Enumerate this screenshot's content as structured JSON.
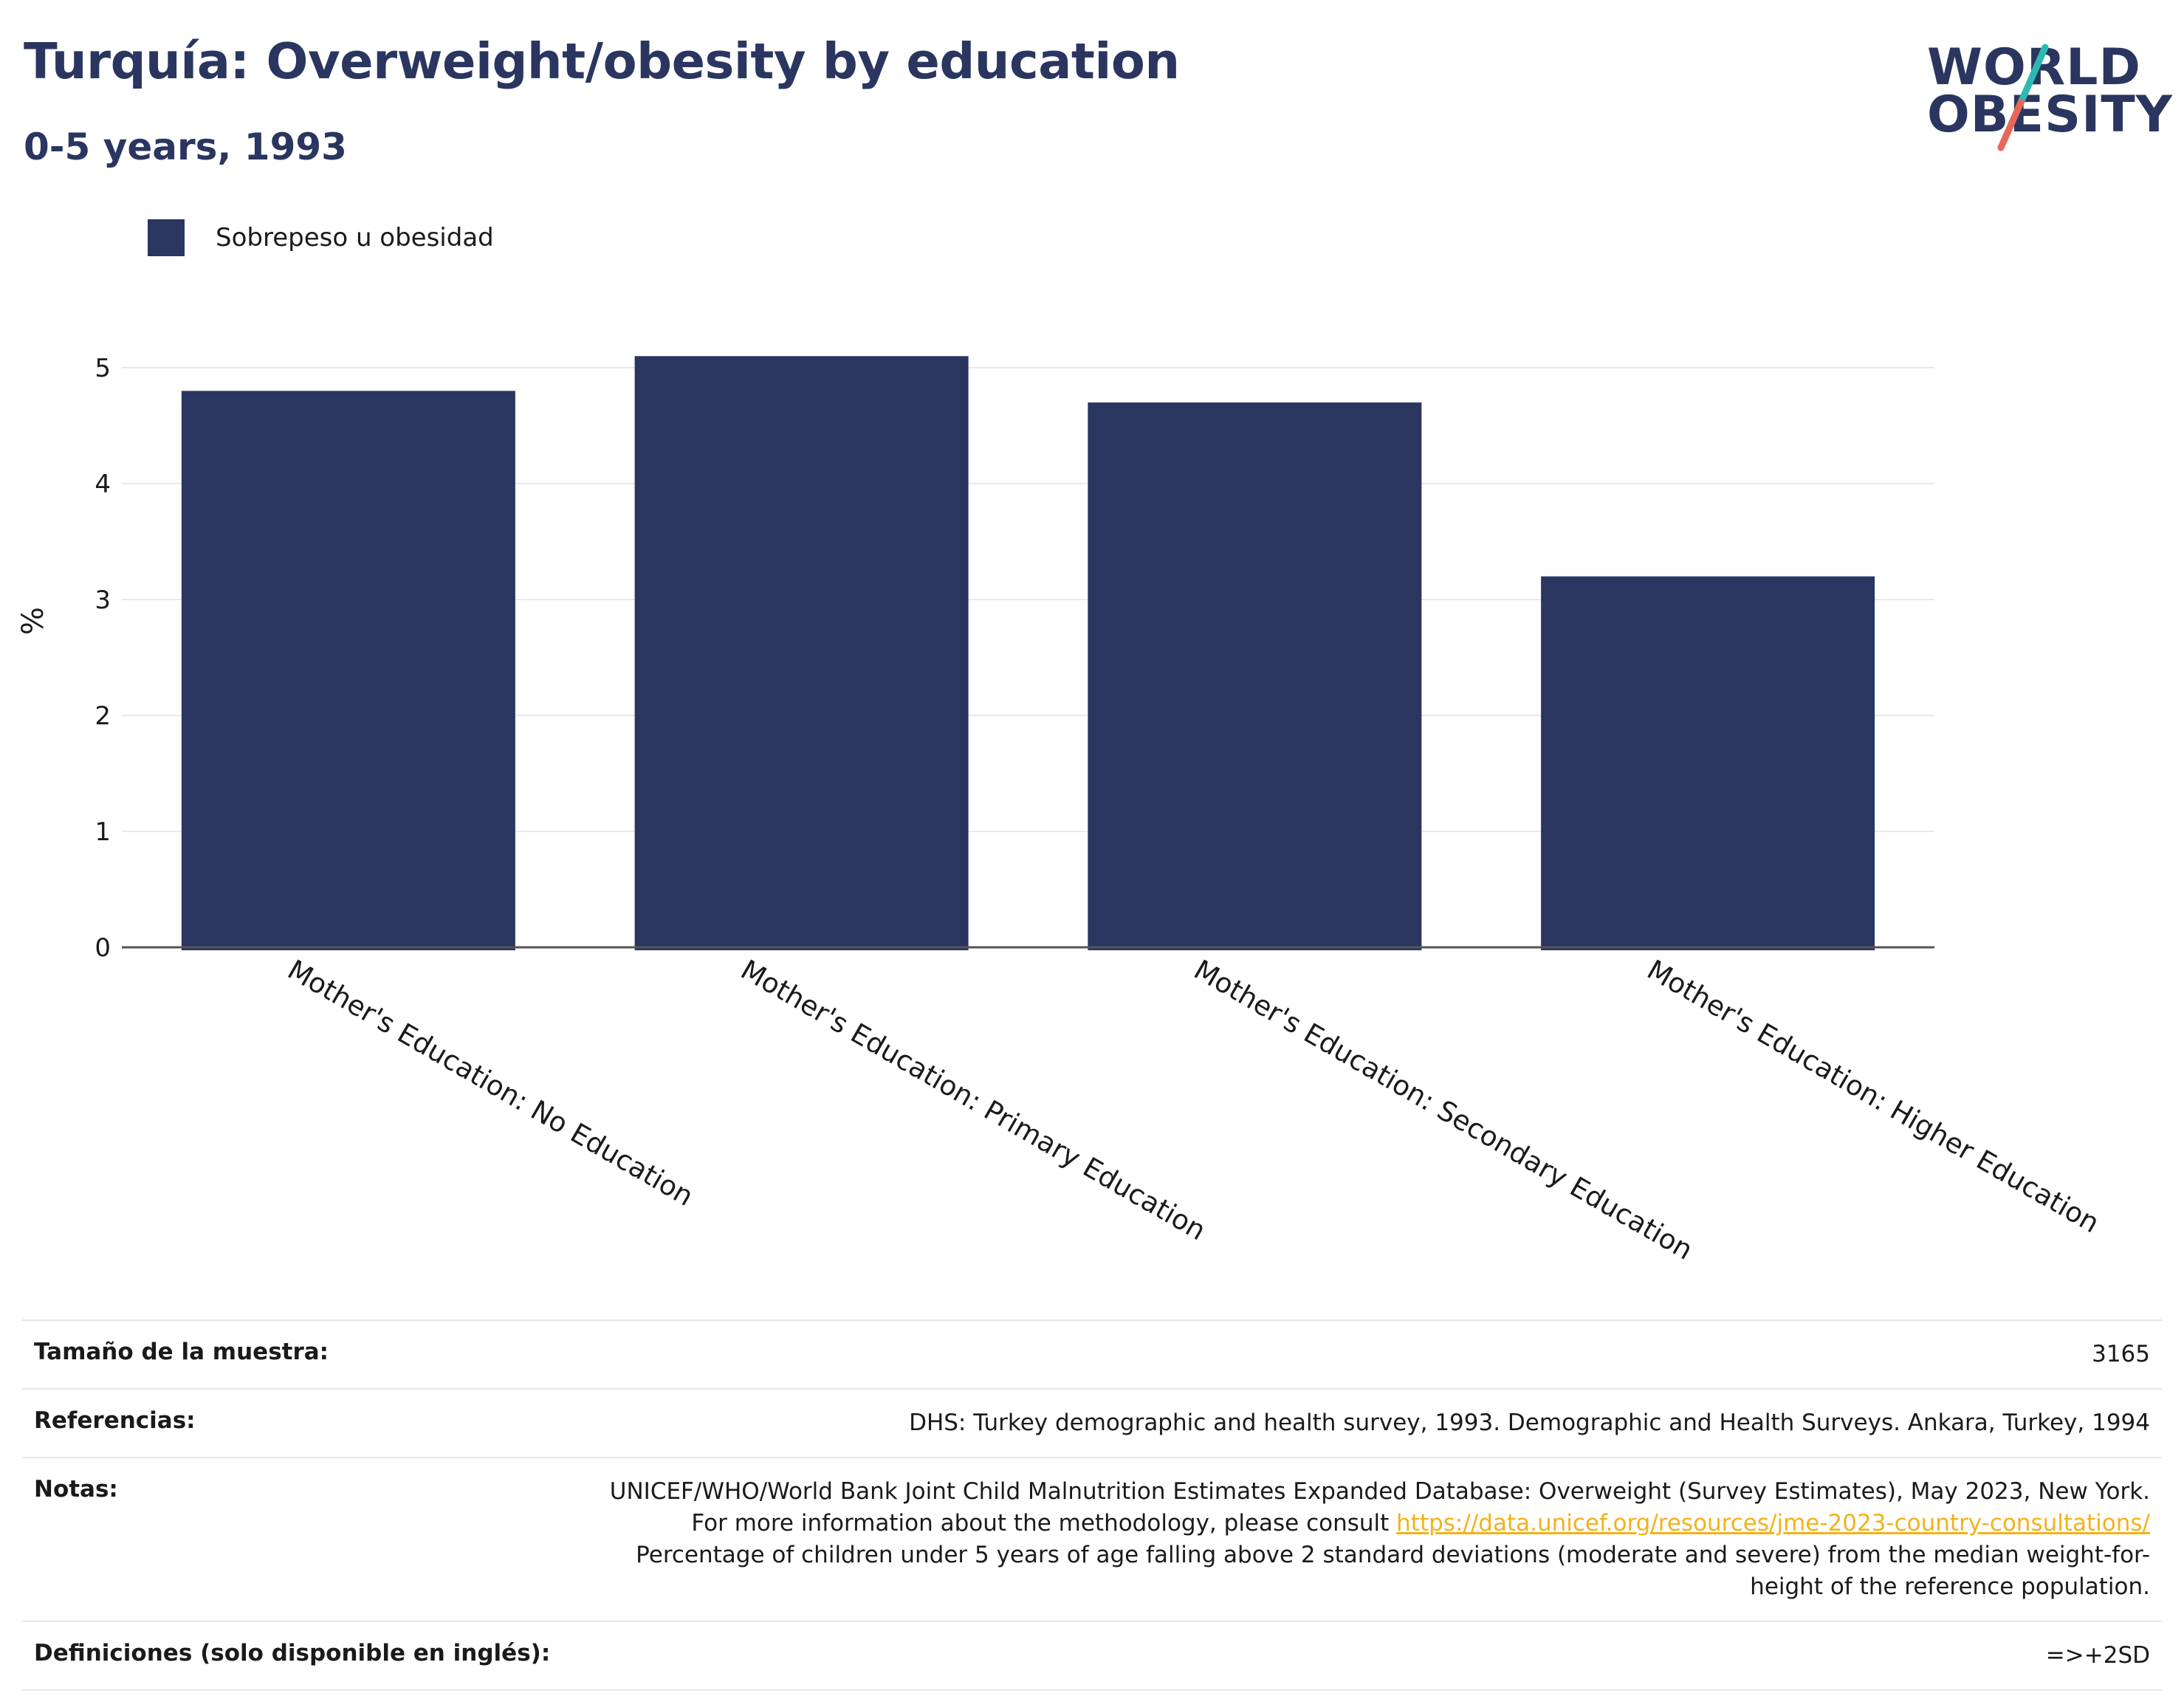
{
  "header": {
    "title": "Turquía: Overweight/obesity by education",
    "subtitle": "0-5 years, 1993"
  },
  "logo": {
    "line1": "WORLD",
    "line2": "OBESITY"
  },
  "legend": {
    "label": "Sobrepeso u obesidad"
  },
  "colors": {
    "bar": "#2a3660",
    "text": "#2a3660",
    "link": "#f3b21a",
    "logo_teal": "#2fb8b2",
    "logo_coral": "#e8675a"
  },
  "chart_data": {
    "type": "bar",
    "ylabel": "%",
    "xlabel": "",
    "ylim": [
      0,
      5.6
    ],
    "yticks": [
      "0",
      "1",
      "2",
      "3",
      "4",
      "5"
    ],
    "grid": true,
    "legend_position": "top-left",
    "categories": [
      "Mother's Education: No Education",
      "Mother's Education: Primary Education",
      "Mother's Education: Secondary Education",
      "Mother's Education: Higher Education"
    ],
    "series": [
      {
        "name": "Sobrepeso u obesidad",
        "values": [
          4.8,
          5.1,
          4.7,
          3.2
        ]
      }
    ]
  },
  "info": {
    "sample_label": "Tamaño de la muestra:",
    "sample_value": "3165",
    "refs_label": "Referencias:",
    "refs_value": "DHS: Turkey demographic and health survey, 1993. Demographic and Health Surveys. Ankara, Turkey, 1994",
    "notes_label": "Notas:",
    "notes_text1": "UNICEF/WHO/World Bank Joint Child Malnutrition Estimates Expanded Database: Overweight (Survey Estimates), May 2023, New York. For more information about the methodology, please consult ",
    "notes_link": "https://data.unicef.org/resources/jme-2023-country-consultations/",
    "notes_text2": "Percentage of children under 5 years of age falling above 2 standard deviations (moderate and severe) from the median weight-for-height of the reference population.",
    "defs_label": "Definiciones (solo disponible en inglés):",
    "defs_value": "=>+2SD"
  }
}
